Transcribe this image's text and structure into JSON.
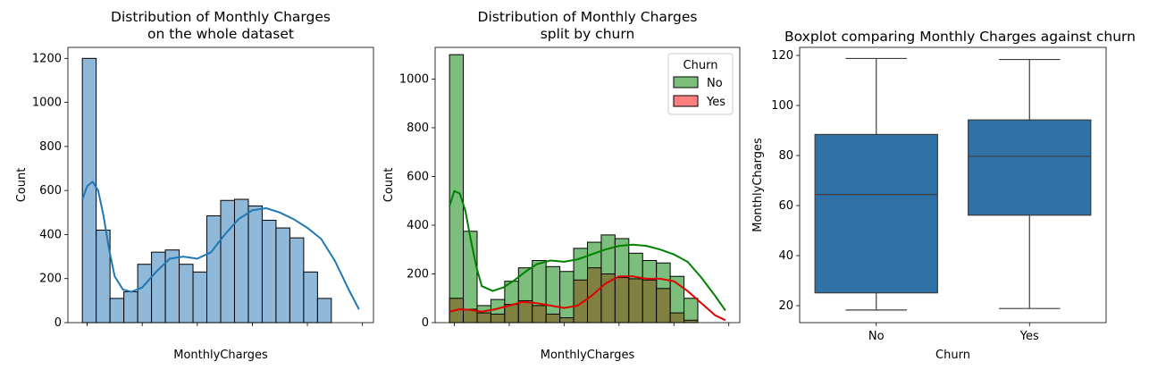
{
  "chart_data": [
    {
      "type": "bar",
      "title": "Distribution of Monthly Charges\non the whole dataset",
      "xlabel": "MonthlyCharges",
      "ylabel": "Count",
      "xlim": [
        13,
        124
      ],
      "ylim": [
        0,
        1250
      ],
      "xticks": [
        20,
        40,
        60,
        80,
        100,
        120
      ],
      "yticks": [
        0,
        200,
        400,
        600,
        800,
        1000,
        1200
      ],
      "bin_start": 18.25,
      "bin_width": 5.025,
      "values": [
        1200,
        420,
        110,
        140,
        265,
        320,
        330,
        265,
        230,
        485,
        555,
        560,
        530,
        465,
        430,
        385,
        230,
        110
      ],
      "kde": {
        "x": [
          18.25,
          20,
          22,
          24,
          26,
          28,
          30,
          33,
          36,
          40,
          45,
          50,
          55,
          60,
          65,
          70,
          75,
          80,
          85,
          90,
          95,
          100,
          105,
          110,
          115,
          118.75
        ],
        "y": [
          560,
          620,
          640,
          600,
          480,
          330,
          210,
          150,
          140,
          160,
          230,
          290,
          300,
          290,
          320,
          400,
          470,
          510,
          520,
          500,
          470,
          430,
          380,
          280,
          150,
          60
        ]
      },
      "colors": {
        "bar": "#8fb8d9",
        "kde": "#1f77b4"
      }
    },
    {
      "type": "bar",
      "title": "Distribution of Monthly Charges\nsplit by churn",
      "xlabel": "MonthlyCharges",
      "ylabel": "Count",
      "xlim": [
        13,
        124
      ],
      "ylim": [
        0,
        1130
      ],
      "xticks": [
        20,
        40,
        60,
        80,
        100,
        120
      ],
      "yticks": [
        0,
        200,
        400,
        600,
        800,
        1000
      ],
      "bin_start": 18.25,
      "bin_width": 5.025,
      "legend": {
        "title": "Churn",
        "placement": "top-right"
      },
      "series": [
        {
          "name": "No",
          "values": [
            1100,
            375,
            70,
            95,
            170,
            225,
            255,
            230,
            210,
            305,
            330,
            360,
            345,
            285,
            255,
            245,
            190,
            100
          ],
          "kde": {
            "x": [
              18.25,
              20,
              22,
              24,
              26,
              28,
              30,
              34,
              38,
              42,
              46,
              50,
              55,
              60,
              65,
              70,
              75,
              80,
              85,
              90,
              95,
              100,
              105,
              110,
              115,
              118.75
            ],
            "y": [
              480,
              540,
              530,
              460,
              340,
              230,
              150,
              130,
              145,
              175,
              210,
              240,
              255,
              250,
              260,
              280,
              300,
              315,
              320,
              315,
              300,
              280,
              250,
              185,
              110,
              50
            ]
          },
          "colors": {
            "bar": "#7cbf7c",
            "kde": "#008000"
          }
        },
        {
          "name": "Yes",
          "values": [
            100,
            55,
            40,
            35,
            75,
            90,
            70,
            35,
            20,
            175,
            225,
            200,
            185,
            180,
            175,
            140,
            40,
            10
          ],
          "kde": {
            "x": [
              18.25,
              22,
              26,
              30,
              35,
              40,
              45,
              50,
              55,
              60,
              65,
              70,
              75,
              80,
              85,
              90,
              95,
              100,
              105,
              110,
              115,
              118.75
            ],
            "y": [
              45,
              55,
              52,
              45,
              55,
              70,
              85,
              80,
              70,
              60,
              70,
              110,
              160,
              190,
              190,
              180,
              180,
              170,
              130,
              80,
              30,
              10
            ]
          },
          "colors": {
            "bar": "#ff7f7f",
            "kde": "#e00000"
          }
        }
      ],
      "overlap_color": "#808040"
    },
    {
      "type": "box",
      "title": "Boxplot comparing Monthly Charges against churn",
      "xlabel": "Churn",
      "ylabel": "MonthlyCharges",
      "ylim": [
        13.2,
        123.2
      ],
      "yticks": [
        20,
        40,
        60,
        80,
        100,
        120
      ],
      "categories": [
        "No",
        "Yes"
      ],
      "boxes": [
        {
          "min": 18.25,
          "q1": 25.1,
          "median": 64.4,
          "q3": 88.4,
          "max": 118.75
        },
        {
          "min": 18.85,
          "q1": 56.15,
          "median": 79.65,
          "q3": 94.2,
          "max": 118.35
        }
      ],
      "colors": {
        "box": "#2e72a8",
        "line": "#3d3d3d"
      }
    }
  ]
}
